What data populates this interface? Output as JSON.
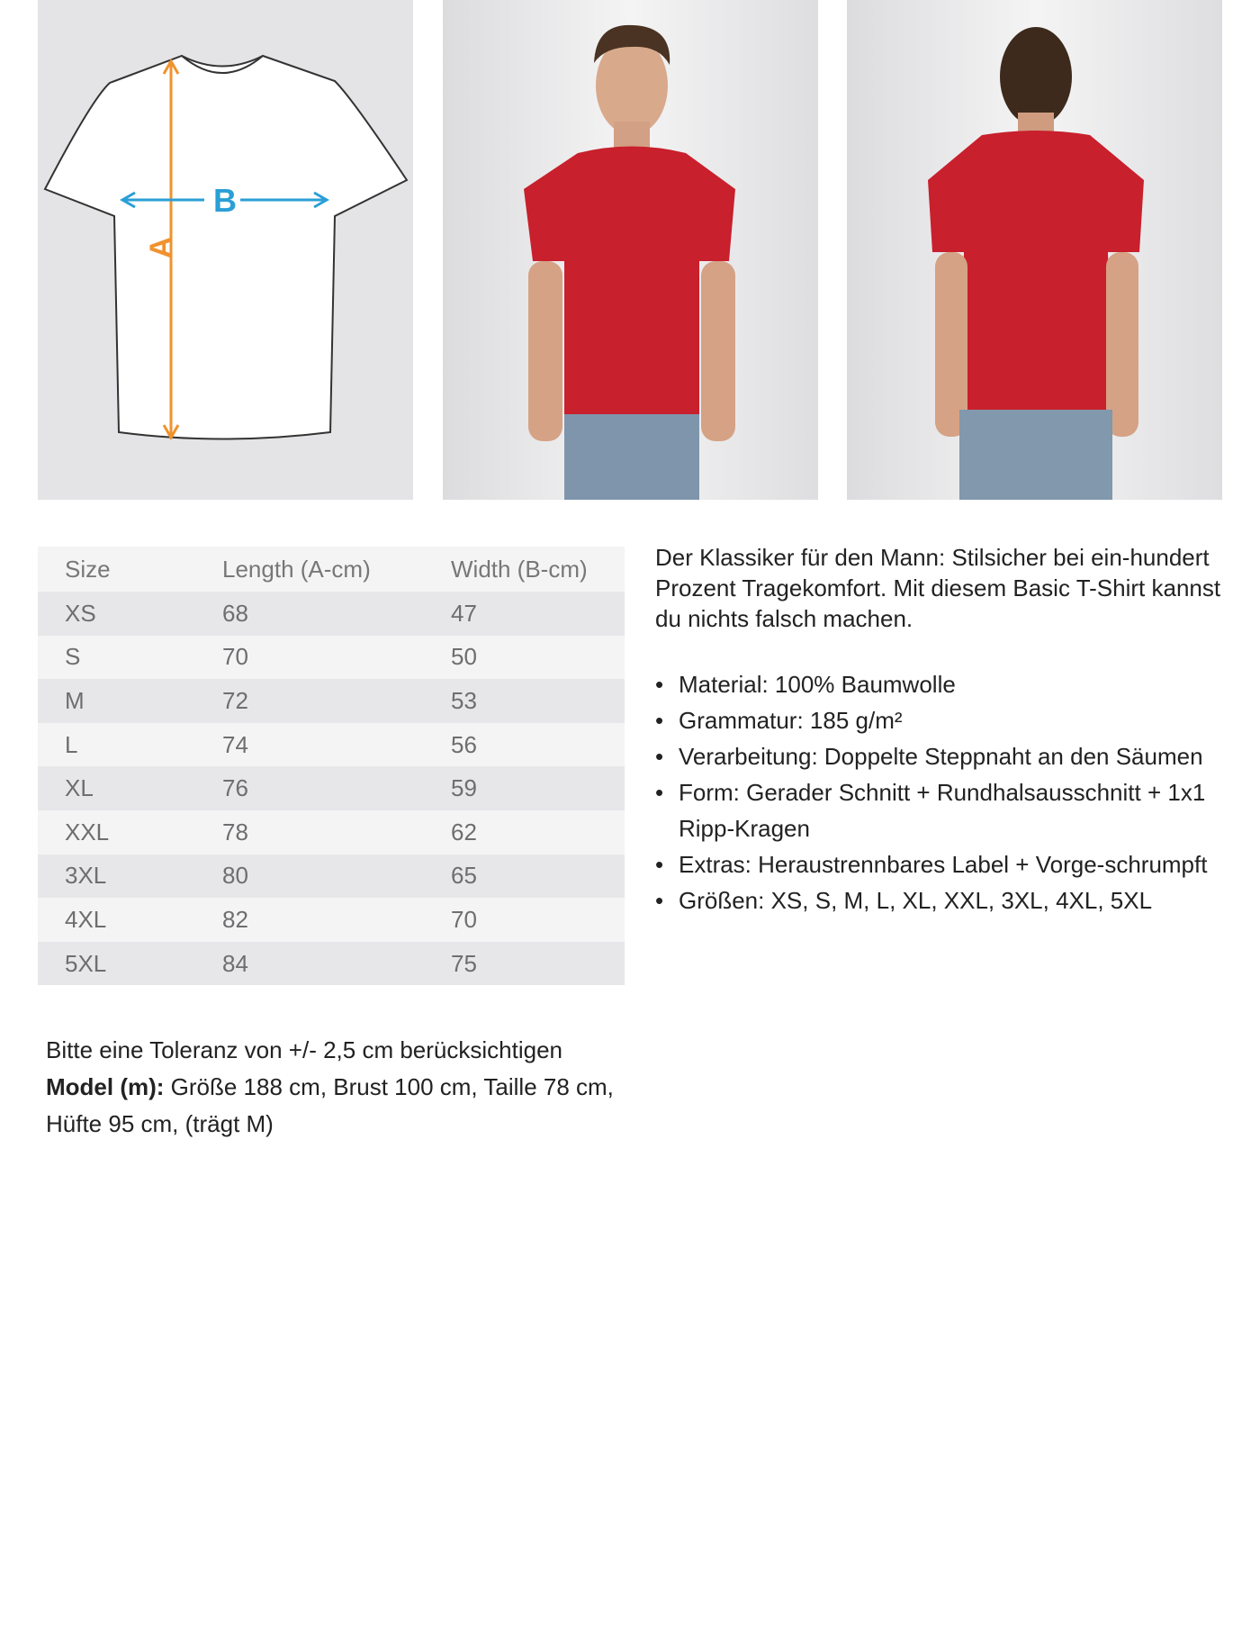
{
  "diagram": {
    "label_a": "A",
    "label_b": "B",
    "color_a": "#f0922e",
    "color_b": "#2a9fd6"
  },
  "table": {
    "headers": [
      "Size",
      "Length (A-cm)",
      "Width (B-cm)"
    ],
    "rows": [
      [
        "XS",
        "68",
        "47"
      ],
      [
        "S",
        "70",
        "50"
      ],
      [
        "M",
        "72",
        "53"
      ],
      [
        "L",
        "74",
        "56"
      ],
      [
        "XL",
        "76",
        "59"
      ],
      [
        "XXL",
        "78",
        "62"
      ],
      [
        "3XL",
        "80",
        "65"
      ],
      [
        "4XL",
        "82",
        "70"
      ],
      [
        "5XL",
        "84",
        "75"
      ]
    ]
  },
  "description": "Der Klassiker für den Mann: Stilsicher bei ein-hundert Prozent Tragekomfort. Mit diesem Basic T-Shirt kannst du nichts falsch machen.",
  "bullets": [
    "Material: 100% Baumwolle",
    "Grammatur: 185 g/m²",
    "Verarbeitung: Doppelte Steppnaht an den Säumen",
    "Form: Gerader Schnitt + Rundhalsausschnitt + 1x1 Ripp-Kragen",
    "Extras: Heraustrennbares Label + Vorge-schrumpft",
    "Größen: XS, S, M, L, XL, XXL, 3XL, 4XL, 5XL"
  ],
  "note": {
    "tolerance": "Bitte eine Toleranz von +/- 2,5 cm berücksichtigen",
    "model_label": "Model (m):",
    "model_text": " Größe 188 cm, Brust 100 cm, Taille 78 cm, Hüfte 95 cm, (trägt M)"
  },
  "colors": {
    "shirt": "#c8202c"
  }
}
